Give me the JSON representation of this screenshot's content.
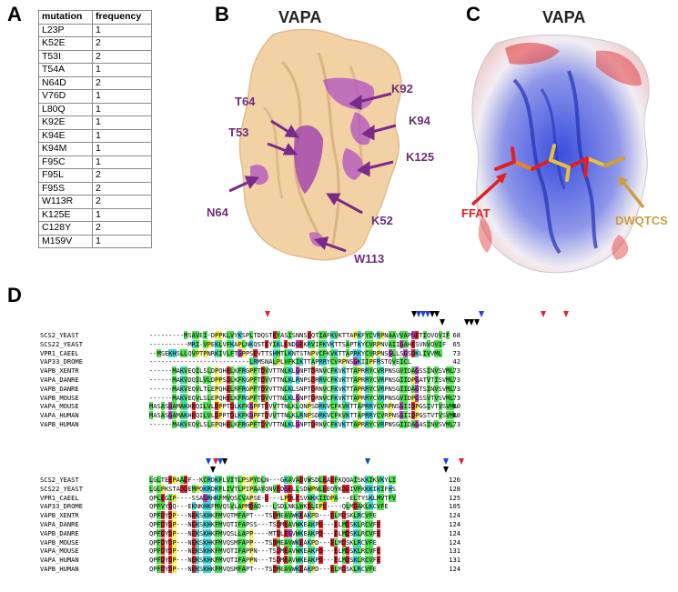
{
  "panels": {
    "a": {
      "letter": "A"
    },
    "b": {
      "letter": "B",
      "title": "VAPA"
    },
    "c": {
      "letter": "C",
      "title": "VAPA"
    },
    "d": {
      "letter": "D"
    }
  },
  "mutation_table": {
    "headers": [
      "mutation",
      "frequency"
    ],
    "rows": [
      [
        "L23P",
        "1"
      ],
      [
        "K52E",
        "2"
      ],
      [
        "T53I",
        "2"
      ],
      [
        "T54A",
        "1"
      ],
      [
        "N64D",
        "2"
      ],
      [
        "V76D",
        "1"
      ],
      [
        "L80Q",
        "1"
      ],
      [
        "K92E",
        "1"
      ],
      [
        "K94E",
        "1"
      ],
      [
        "K94M",
        "1"
      ],
      [
        "F95C",
        "1"
      ],
      [
        "F95L",
        "2"
      ],
      [
        "F95S",
        "2"
      ],
      [
        "W113R",
        "2"
      ],
      [
        "K125E",
        "1"
      ],
      [
        "C128Y",
        "2"
      ],
      [
        "M159V",
        "1"
      ]
    ]
  },
  "structure_b_labels": {
    "t64": "T64",
    "t53": "T53",
    "n64": "N64",
    "k92": "K92",
    "k94": "K94",
    "k125": "K125",
    "k52": "K52",
    "w113": "W113"
  },
  "structure_c_labels": {
    "ffat": "FFAT",
    "dwqtcs": "DWQTCS"
  },
  "colors": {
    "surface_tan": "#f2cfa0",
    "mutation_purple": "#a040b0",
    "label_purple": "#6e2e78",
    "electro_blue": "#3a4ee0",
    "electro_red": "#e03030",
    "ffat_red": "#e02020",
    "dwqtcs_gold": "#c8a040"
  },
  "alignment": {
    "block1": [
      {
        "name": "SCS2_YEAST",
        "seq": "---------MSAVEI-DPPKLVYKSPLTDQSTEYASISNNSDQTIAFKVKTTAPKFYCVRPNAAVVAPGETIQVQVIF",
        "end": "68"
      },
      {
        "name": "SCS22_YEAST",
        "seq": "----------MRI-VPEKLVFKAPLNKQSTEYIKLENDGEKRVIFKVKTTSAPTKYCVRPNVAIIGAHESVNVQVIF",
        "end": "65"
      },
      {
        "name": "VPR1_CAEEL",
        "seq": "--MSEKHSLLQVPTPNRKIVLFTGPPSEVTTSHMTLKNTSTNPVCFKVKTTAPRKYCVRPNSGLLSGSDKLIVVML",
        "end": "73"
      },
      {
        "name": "VAP33_DROME",
        "seq": "--------------------------LRMSNALPLVFKIKTTAPRRYCVRPNSGKIIPFRSTQVEICL",
        "end": "42"
      },
      {
        "name": "VAPB_XENTR",
        "seq": "------MAKVEQILSLDPQHELKFRGPFTDVVTTNLKLGNPTDRNVCFKVKTTAPRRYCVRPNSGVIDAGSSINVSVML",
        "end": "73"
      },
      {
        "name": "VAPA_DANRE",
        "seq": "------MAKVDQILVLDPPSDLKFKGPFTDVVTTNLKLRNPSDRRVCFKVKTTAPRRYCVRPNSGIIDPGATVTISVML",
        "end": "73"
      },
      {
        "name": "VAPB_DANRE",
        "seq": "------MAKVEQVLTLEPQHELRFRGPFTDVVTTNLKLSNPTDRNVCFKVKTTAPRRYCVRPNSGIIDAGTSINVSVML",
        "end": "73"
      },
      {
        "name": "VAPB_MOUSE",
        "seq": "------MAKVEQVLSLEPQHELKFRGPFTDVVTTNLKLGNPTDRNVCFKVKTTAPRRYCVRPNSGVIDPGSSVTVSVML",
        "end": "73"
      },
      {
        "name": "VAPA_MOUSE",
        "seq": "MASASGAMAKHEQILVLDPPTDLKFKGPFTDVVTTNLKLQNPSDRKVCFKVKTTAPRRYCVRPNSGIIDPGSIVTVSVML",
        "end": "80"
      },
      {
        "name": "VAPA_HUMAN",
        "seq": "MASASGAMAKHEQILVLDPPTDLKFKGPFTDVVTTNLKLRNPSDRKVCFKVKTTAPRRYCVRPNSGIIDPGSTVTVSVML",
        "end": "80"
      },
      {
        "name": "VAPB_HUMAN",
        "seq": "------MAKVEQVLSLEPQHELKFRGPFTDVVTTNLKLGNPTDRNVCFKVKTTAPRRYCVRPNSGIIDAGASINVSVML",
        "end": "73"
      }
    ],
    "block2": [
      {
        "name": "SCS2_YEAST",
        "seq": "LGLTEEPAADF--KCRDKFLVITLPSPYDLN---GKAVADVWSDLEAEFKQQAISKKIKVKYLI",
        "end": "126"
      },
      {
        "name": "SCS22_YEAST",
        "seq": "LGLPKSTADDEMPQKRDKFLIVTLPIPAAYQNVEDGELLSDWPNLEEQYKDDIVFKKKIKIFHS",
        "end": "128"
      },
      {
        "name": "VPR1_CAEEL",
        "seq": "QPLEGIP----SSAGRHKFMVQSCVAPSE-D---LPDLESVWKKIIDPA---ELTYSKLMVTFV",
        "end": "125"
      },
      {
        "name": "VAP33_DROME",
        "seq": "QPFVYDQ---EKNKHKFMVQSVLAPMDAD---LSDLNKLWKELEPE----QLMDAKLKCVFE",
        "end": "105"
      },
      {
        "name": "VAPB_XENTR",
        "seq": "QPFDYDP---NEKSKHKFMVQTMFAPT---TSDMEAVWKEAKPD---ELMDSKLRCVFE",
        "end": "124"
      },
      {
        "name": "VAPA_DANRE",
        "seq": "QPFDYDP---NEKSKHKFMVQTIFAPSS---TSDMEAVWKEAKPD---ELMDSKLRCVFE",
        "end": "124"
      },
      {
        "name": "VAPB_DANRE",
        "seq": "QPFDYDP---NEKSKHKFMVQSLLAPP----MTDLEGVWKEAKPD---ELMDSKLRCVFE",
        "end": "124"
      },
      {
        "name": "VAPB_MOUSE",
        "seq": "QPFDYDP---NEKSKHKFMVQSMFAPP---TSDMEAVWKEAKPD---ELMDSKLRCVFE",
        "end": "124"
      },
      {
        "name": "VAPA_MOUSE",
        "seq": "QPFDYDP---NEKSKHKFMVQTIFAPPN---TSDMEAVWKEAKPD---ELMDSKLRCVFE",
        "end": "131"
      },
      {
        "name": "VAPA_HUMAN",
        "seq": "QPFDYDP---NEKSKHKFMVQTIFAPPN---TSDMEAVWKEAKPD---ELMDSKLRCVFE",
        "end": "131"
      },
      {
        "name": "VAPB_HUMAN",
        "seq": "QPFDYDP---NEKSKHKFMVQSMFAPT---TSDMEAVWKEAKPD---ELMDSKLRCVFE",
        "end": "124"
      }
    ]
  }
}
